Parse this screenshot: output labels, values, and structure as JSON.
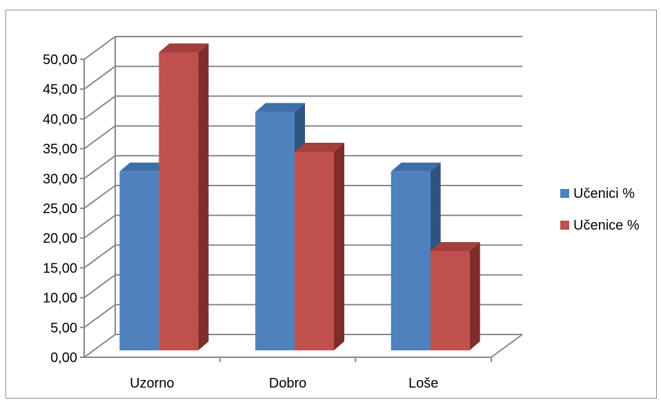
{
  "chart_data": {
    "type": "bar",
    "title": "",
    "xlabel": "",
    "ylabel": "",
    "categories": [
      "Uzorno",
      "Dobro",
      "Loše"
    ],
    "series": [
      {
        "name": "Učenici %",
        "values": [
          30.0,
          40.0,
          30.0
        ],
        "color": "#4F81BD",
        "side_color": "#2E5582",
        "top_color": "#3F6FA8"
      },
      {
        "name": "Učenice %",
        "values": [
          50.0,
          33.33,
          16.67
        ],
        "color": "#C0504D",
        "side_color": "#7E2D2B",
        "top_color": "#A33F3C"
      }
    ],
    "ylim": [
      0,
      50
    ],
    "y_ticks": [
      "0,00",
      "5,00",
      "10,00",
      "15,00",
      "20,00",
      "25,00",
      "30,00",
      "35,00",
      "40,00",
      "45,00",
      "50,00"
    ],
    "grid": true,
    "legend_position": "right",
    "style": "3d-clustered-column"
  }
}
